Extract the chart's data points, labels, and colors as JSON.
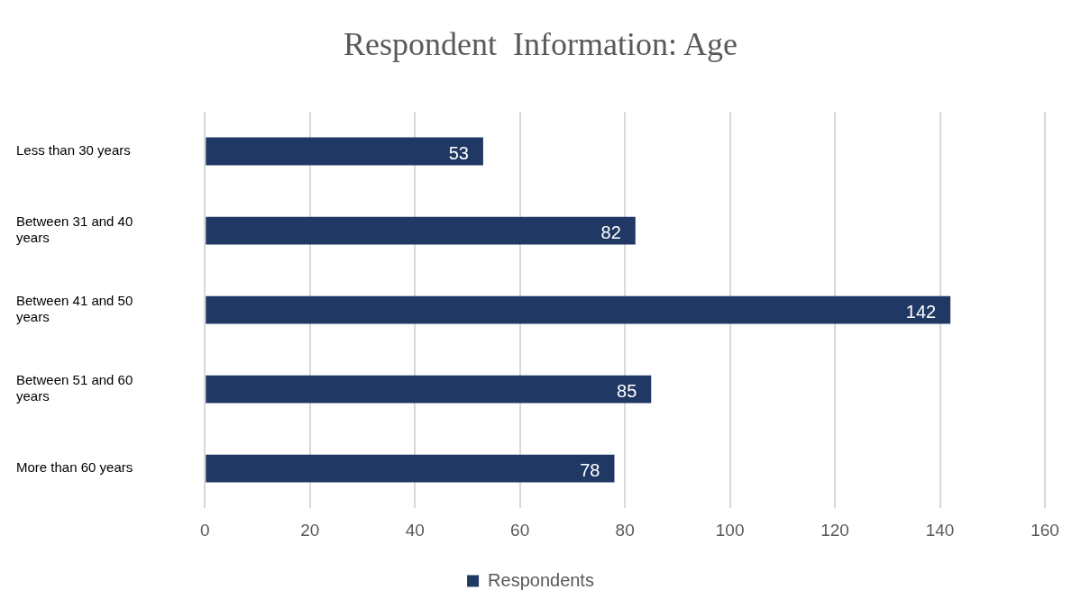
{
  "chart_data": {
    "type": "bar",
    "orientation": "horizontal",
    "title": "Respondent  Information: Age",
    "categories": [
      "Less than 30 years",
      "Between 31 and 40 years",
      "Between 41 and 50 years",
      "Between 51 and 60 years",
      "More than 60 years"
    ],
    "series": [
      {
        "name": "Respondents",
        "color": "#1f3864",
        "values": [
          53,
          82,
          142,
          85,
          78
        ]
      }
    ],
    "xlim": [
      0,
      160
    ],
    "xticks": [
      0,
      20,
      40,
      60,
      80,
      100,
      120,
      140,
      160
    ],
    "grid": "x",
    "legend": "bottom",
    "data_labels": true
  }
}
